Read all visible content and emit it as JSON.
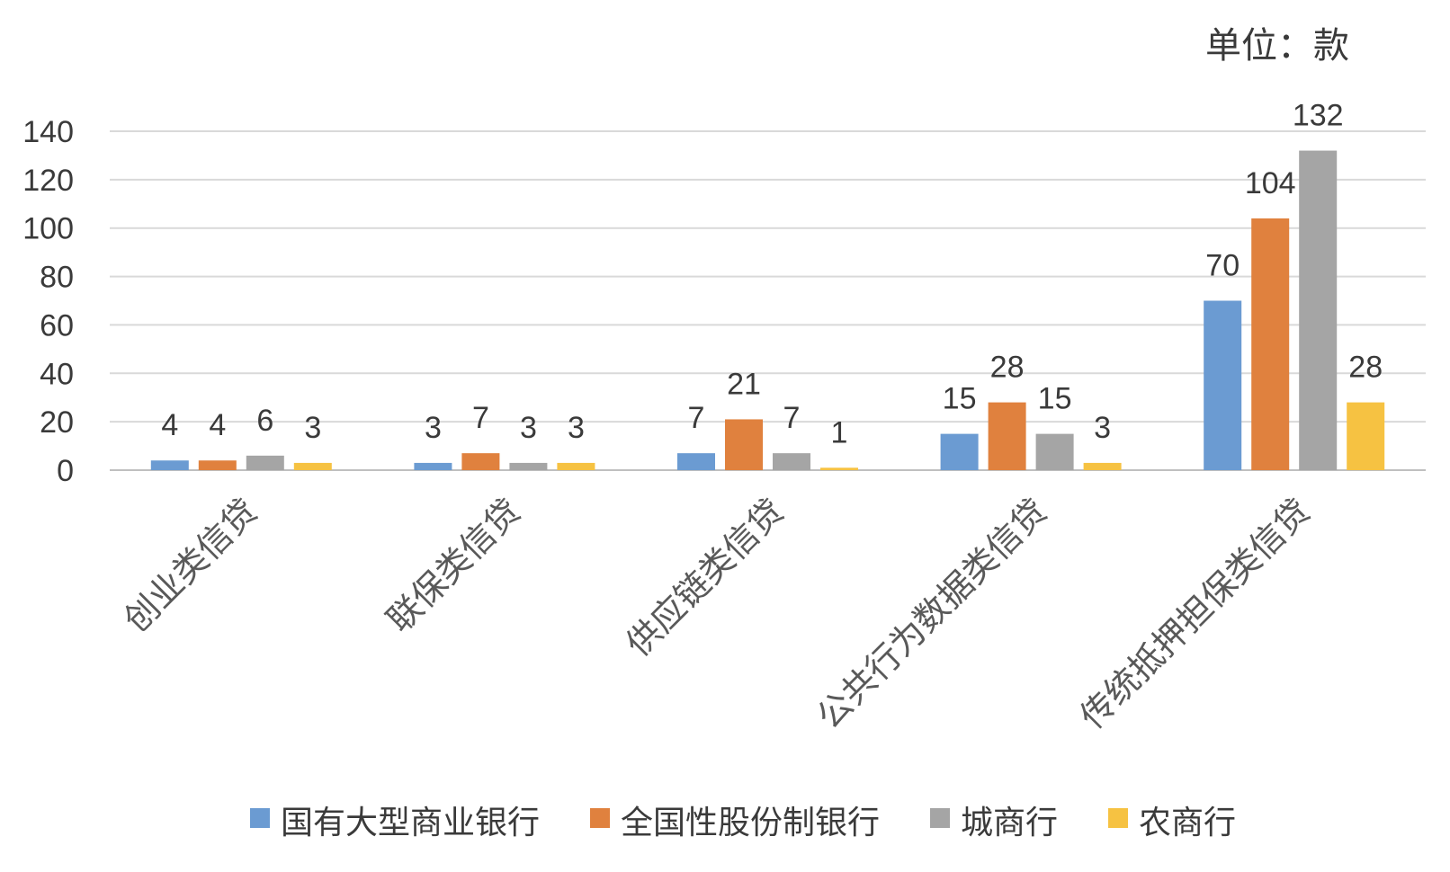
{
  "chart_data": {
    "type": "bar",
    "unit_label": "单位：款",
    "categories": [
      "创业类信贷",
      "联保类信贷",
      "供应链类信贷",
      "公共行为数据类信贷",
      "传统抵押担保类信贷"
    ],
    "series": [
      {
        "name": "国有大型商业银行",
        "color": "#6b9bd2",
        "values": [
          4,
          3,
          7,
          15,
          70
        ]
      },
      {
        "name": "全国性股份制银行",
        "color": "#e0813e",
        "values": [
          4,
          7,
          21,
          28,
          104
        ]
      },
      {
        "name": "城商行",
        "color": "#a5a5a5",
        "values": [
          6,
          3,
          7,
          15,
          132
        ]
      },
      {
        "name": "农商行",
        "color": "#f6c242",
        "values": [
          3,
          3,
          1,
          3,
          28
        ]
      }
    ],
    "yticks": [
      0,
      20,
      40,
      60,
      80,
      100,
      120,
      140
    ],
    "ylim": [
      0,
      140
    ],
    "grid": true,
    "legend_position": "bottom"
  }
}
